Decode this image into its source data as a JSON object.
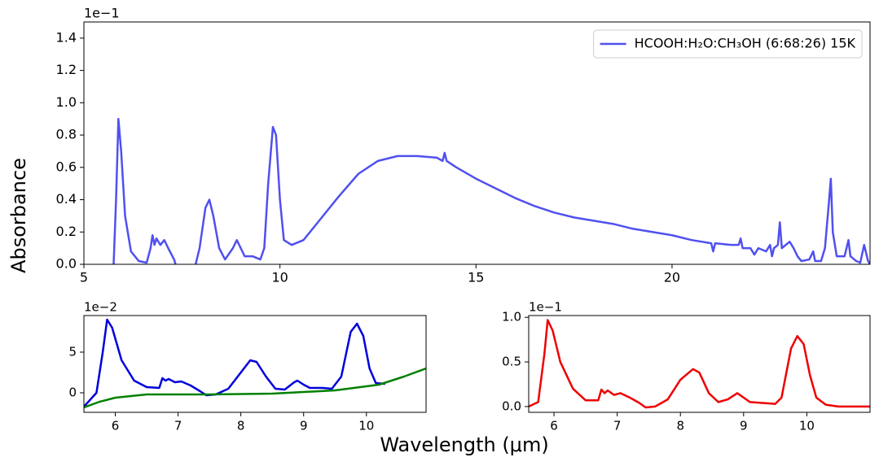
{
  "figure": {
    "ylabel": "Absorbance",
    "xlabel": "Wavelength (μm)"
  },
  "chart_data": [
    {
      "type": "line",
      "xlim": [
        5,
        25.05
      ],
      "ylim": [
        0,
        1.5
      ],
      "xticks": [
        5,
        10,
        15,
        20
      ],
      "yticks": [
        {
          "value": 0,
          "label": "0.0"
        },
        0.2,
        0.4,
        0.6,
        0.8,
        {
          "value": 1,
          "label": "1.0"
        },
        1.2,
        1.4
      ],
      "y_offset_label": "1e−1",
      "legend": "upper right",
      "series": [
        {
          "name": "HCOOH:H₂O:CH₃OH (6:68:26) 15K",
          "color": "#5050f0",
          "x": [
            5.75,
            5.82,
            5.88,
            5.95,
            6.05,
            6.2,
            6.4,
            6.6,
            6.7,
            6.75,
            6.8,
            6.85,
            6.95,
            7.05,
            7.15,
            7.3,
            7.4,
            7.8,
            7.95,
            8.1,
            8.2,
            8.3,
            8.45,
            8.6,
            8.8,
            8.9,
            9.0,
            9.1,
            9.3,
            9.5,
            9.6,
            9.7,
            9.82,
            9.9,
            10.0,
            10.1,
            10.3,
            10.6,
            11,
            11.5,
            12,
            12.5,
            13,
            13.5,
            14,
            14.15,
            14.2,
            14.25,
            14.5,
            15,
            15.5,
            16,
            16.5,
            17,
            17.5,
            18,
            18.5,
            19,
            19.5,
            20,
            20.5,
            21,
            21.05,
            21.1,
            21.5,
            21.7,
            21.75,
            21.8,
            22,
            22.1,
            22.2,
            22.4,
            22.5,
            22.55,
            22.6,
            22.7,
            22.75,
            22.8,
            23,
            23.1,
            23.2,
            23.3,
            23.5,
            23.6,
            23.65,
            23.8,
            23.9,
            24.0,
            24.05,
            24.1,
            24.2,
            24.4,
            24.5,
            24.55,
            24.7,
            24.8,
            24.9,
            25,
            25.05
          ],
          "values": [
            -0.05,
            0.4,
            0.9,
            0.7,
            0.3,
            0.08,
            0.02,
            0.01,
            0.1,
            0.18,
            0.12,
            0.16,
            0.12,
            0.15,
            0.1,
            0.03,
            -0.05,
            -0.05,
            0.1,
            0.35,
            0.4,
            0.3,
            0.1,
            0.03,
            0.1,
            0.15,
            0.1,
            0.05,
            0.05,
            0.03,
            0.1,
            0.5,
            0.85,
            0.8,
            0.4,
            0.15,
            0.12,
            0.15,
            0.27,
            0.42,
            0.56,
            0.64,
            0.67,
            0.67,
            0.66,
            0.64,
            0.69,
            0.64,
            0.6,
            0.53,
            0.47,
            0.41,
            0.36,
            0.32,
            0.29,
            0.27,
            0.25,
            0.22,
            0.2,
            0.18,
            0.15,
            0.13,
            0.08,
            0.13,
            0.12,
            0.12,
            0.16,
            0.1,
            0.1,
            0.06,
            0.1,
            0.08,
            0.12,
            0.05,
            0.1,
            0.12,
            0.26,
            0.1,
            0.14,
            0.1,
            0.05,
            0.02,
            0.03,
            0.08,
            0.02,
            0.02,
            0.1,
            0.38,
            0.53,
            0.2,
            0.05,
            0.05,
            0.15,
            0.05,
            0.02,
            0.01,
            0.12,
            0.02,
            0.0
          ]
        }
      ]
    },
    {
      "type": "line",
      "xlim": [
        5.5,
        10.95
      ],
      "ylim": [
        -2.4,
        9.5
      ],
      "xticks": [
        6,
        7,
        8,
        9,
        10
      ],
      "yticks": [
        0,
        5
      ],
      "y_offset_label": "1e−2",
      "series": [
        {
          "color": "#0000dd",
          "x": [
            5.5,
            5.7,
            5.8,
            5.87,
            5.95,
            6.1,
            6.3,
            6.5,
            6.7,
            6.75,
            6.8,
            6.85,
            6.95,
            7.05,
            7.2,
            7.35,
            7.45,
            7.6,
            7.8,
            8.0,
            8.15,
            8.25,
            8.4,
            8.55,
            8.7,
            8.85,
            8.9,
            9.0,
            9.1,
            9.3,
            9.45,
            9.6,
            9.75,
            9.85,
            9.95,
            10.05,
            10.15,
            10.3
          ],
          "values": [
            -1.7,
            0,
            5,
            9,
            8,
            4,
            1.5,
            0.7,
            0.6,
            1.8,
            1.5,
            1.7,
            1.3,
            1.4,
            0.9,
            0.2,
            -0.3,
            -0.2,
            0.5,
            2.5,
            4,
            3.8,
            2,
            0.5,
            0.4,
            1.3,
            1.5,
            1,
            0.6,
            0.6,
            0.5,
            2,
            7.5,
            8.5,
            7,
            3,
            1.2,
            1.1
          ]
        },
        {
          "color": "#008000",
          "x": [
            5.5,
            5.75,
            6,
            6.5,
            7.5,
            8.5,
            9.5,
            10.2,
            10.6,
            10.95
          ],
          "values": [
            -1.8,
            -1.1,
            -0.6,
            -0.2,
            -0.2,
            -0.1,
            0.3,
            1,
            2,
            3
          ]
        }
      ]
    },
    {
      "type": "line",
      "xlim": [
        5.6,
        11.0
      ],
      "ylim": [
        -0.065,
        1.02
      ],
      "xticks": [
        6,
        7,
        8,
        9,
        10
      ],
      "yticks": [
        {
          "value": 0,
          "label": "0.0"
        },
        0.5,
        {
          "value": 1,
          "label": "1.0"
        }
      ],
      "y_offset_label": "1e−1",
      "series": [
        {
          "color": "#ee0000",
          "x": [
            5.6,
            5.75,
            5.85,
            5.9,
            5.98,
            6.1,
            6.3,
            6.5,
            6.7,
            6.75,
            6.8,
            6.85,
            6.95,
            7.05,
            7.2,
            7.35,
            7.45,
            7.6,
            7.8,
            8.0,
            8.2,
            8.3,
            8.45,
            8.6,
            8.75,
            8.9,
            9.0,
            9.1,
            9.3,
            9.5,
            9.6,
            9.75,
            9.85,
            9.95,
            10.05,
            10.15,
            10.3,
            10.5,
            11.0
          ],
          "values": [
            0.0,
            0.05,
            0.6,
            0.97,
            0.85,
            0.5,
            0.2,
            0.07,
            0.07,
            0.19,
            0.15,
            0.18,
            0.13,
            0.15,
            0.1,
            0.04,
            -0.01,
            0.0,
            0.08,
            0.3,
            0.42,
            0.38,
            0.15,
            0.05,
            0.08,
            0.15,
            0.1,
            0.05,
            0.04,
            0.03,
            0.1,
            0.65,
            0.79,
            0.7,
            0.35,
            0.1,
            0.02,
            0.0,
            0.0
          ]
        }
      ]
    }
  ]
}
